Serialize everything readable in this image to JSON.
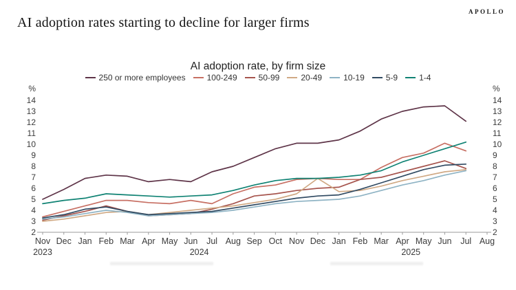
{
  "branding": {
    "logo_text": "APOLLO"
  },
  "page": {
    "title": "AI adoption rates starting to decline for larger firms"
  },
  "chart_data": {
    "type": "line",
    "title": "AI adoption rate, by firm size",
    "unit_label": "%",
    "grid": false,
    "legend_position": "top",
    "y_axis": {
      "min": 2,
      "max": 14,
      "tick_step": 1
    },
    "x_labels": [
      "Nov",
      "Dec",
      "Jan",
      "Feb",
      "Mar",
      "Apr",
      "May",
      "Jun",
      "Jul",
      "Aug",
      "Sep",
      "Oct",
      "Nov",
      "Dec",
      "Jan",
      "Feb",
      "Mar",
      "Apr",
      "May",
      "Jun",
      "Jul",
      "Aug"
    ],
    "year_labels": [
      {
        "text": "2023",
        "month_index": 0
      },
      {
        "text": "2024",
        "month_index": 7.4
      },
      {
        "text": "2025",
        "month_index": 17.4
      }
    ],
    "x_range_note": "monthly values, Nov 2023 through Jul 2025",
    "series": [
      {
        "name": "250 or more employees",
        "color": "#5e3448",
        "values": [
          5.0,
          5.9,
          6.9,
          7.2,
          7.1,
          6.6,
          6.8,
          6.6,
          7.5,
          8.0,
          8.8,
          9.6,
          10.1,
          10.1,
          10.4,
          11.2,
          12.3,
          13.0,
          13.4,
          13.5,
          12.1
        ]
      },
      {
        "name": "100-249",
        "color": "#c76f63",
        "values": [
          3.4,
          3.9,
          4.4,
          4.9,
          4.9,
          4.7,
          4.6,
          4.9,
          4.6,
          5.5,
          6.1,
          6.3,
          6.8,
          6.9,
          6.8,
          6.8,
          7.9,
          8.8,
          9.2,
          10.1,
          9.4
        ]
      },
      {
        "name": "50-99",
        "color": "#a6544d",
        "values": [
          3.1,
          3.5,
          3.9,
          4.4,
          3.9,
          3.5,
          3.6,
          3.7,
          4.1,
          4.6,
          5.3,
          5.5,
          5.8,
          6.0,
          6.1,
          6.8,
          7.0,
          7.5,
          8.0,
          8.5,
          7.8
        ]
      },
      {
        "name": "20-49",
        "color": "#d0a984",
        "values": [
          3.0,
          3.2,
          3.5,
          3.8,
          3.9,
          3.6,
          3.8,
          4.0,
          4.2,
          4.4,
          4.7,
          5.0,
          5.5,
          6.9,
          5.7,
          5.8,
          6.2,
          6.7,
          7.1,
          7.5,
          7.7
        ]
      },
      {
        "name": "10-19",
        "color": "#8eb3c4",
        "values": [
          3.2,
          3.4,
          3.7,
          4.0,
          3.8,
          3.5,
          3.6,
          3.7,
          3.8,
          4.0,
          4.3,
          4.6,
          4.8,
          4.9,
          5.0,
          5.3,
          5.8,
          6.3,
          6.7,
          7.2,
          7.6
        ]
      },
      {
        "name": "5-9",
        "color": "#304a62",
        "values": [
          3.3,
          3.6,
          4.1,
          4.3,
          3.9,
          3.6,
          3.7,
          3.8,
          3.9,
          4.2,
          4.5,
          4.8,
          5.1,
          5.3,
          5.4,
          5.9,
          6.5,
          7.1,
          7.7,
          8.1,
          8.2
        ]
      },
      {
        "name": "1-4",
        "color": "#0f8273",
        "values": [
          4.6,
          4.9,
          5.1,
          5.5,
          5.4,
          5.3,
          5.2,
          5.3,
          5.4,
          5.8,
          6.3,
          6.7,
          6.9,
          6.9,
          7.0,
          7.2,
          7.6,
          8.4,
          9.0,
          9.6,
          10.2
        ]
      }
    ]
  }
}
